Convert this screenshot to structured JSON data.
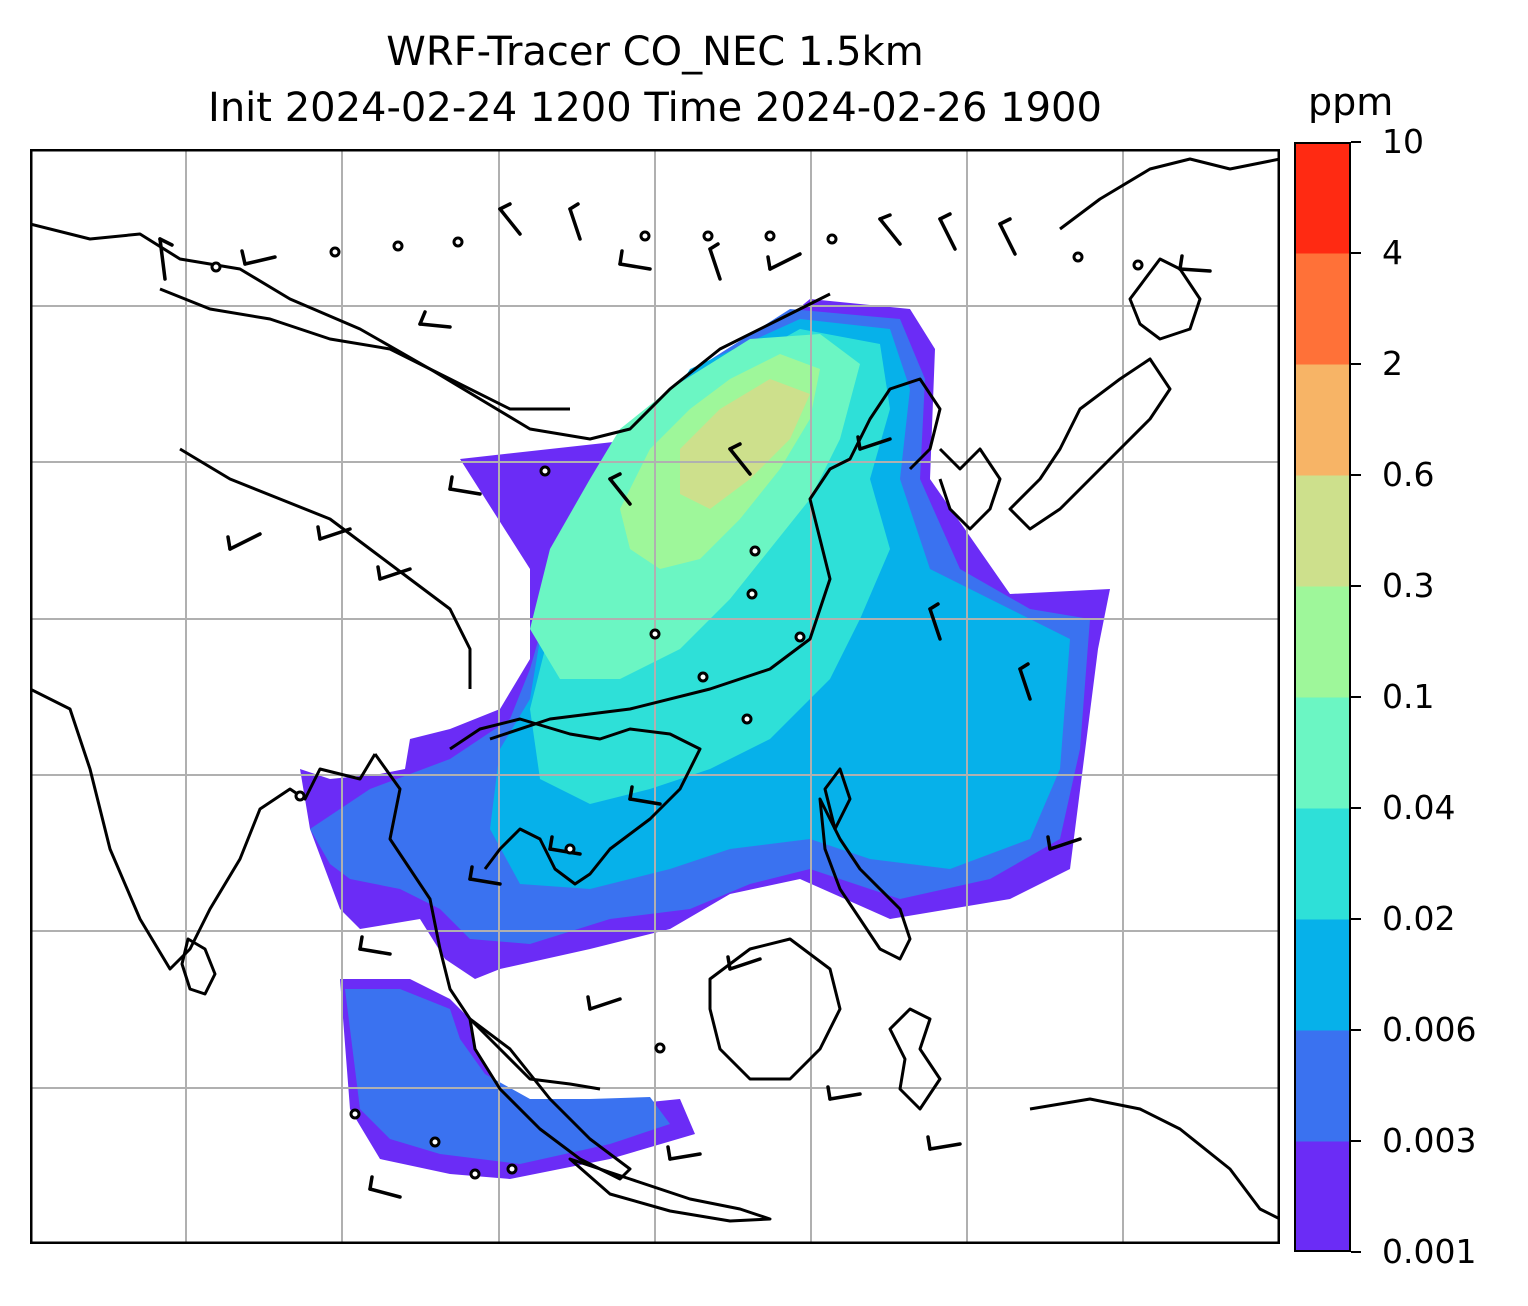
{
  "title": {
    "line1": "WRF-Tracer CO_NEC 1.5km",
    "line2": "Init 2024-02-24 1200 Time 2024-02-26 1900"
  },
  "colorbar": {
    "unit": "ppm",
    "ticks": [
      "0.001",
      "0.003",
      "0.006",
      "0.02",
      "0.04",
      "0.1",
      "0.3",
      "0.6",
      "2",
      "4",
      "10"
    ],
    "colors": [
      "#6b2cf6",
      "#3a72f0",
      "#06b1ea",
      "#2ee0d8",
      "#6bf6c3",
      "#9ef79a",
      "#cde08c",
      "#f7b466",
      "#ff7138",
      "#ff2a12"
    ]
  },
  "map": {
    "gridline_color": "#b0b0b0",
    "coastline_color": "#000000",
    "wind_barb_color": "#000000"
  }
}
